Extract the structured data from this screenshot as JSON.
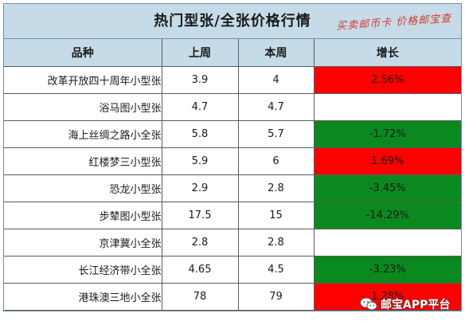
{
  "title": "热门型张/全张价格行情",
  "stamp": "买卖邮币卡 价格邮宝查",
  "headers": [
    "品种",
    "上周",
    "本周",
    "增长"
  ],
  "rows": [
    {
      "name": "改革开放四十周年小型张",
      "last_week": "3.9",
      "this_week": "4",
      "change": "2.56%",
      "trend": "up"
    },
    {
      "name": "浴马图小型张",
      "last_week": "4.7",
      "this_week": "4.7",
      "change": "",
      "trend": "flat"
    },
    {
      "name": "海上丝绸之路小全张",
      "last_week": "5.8",
      "this_week": "5.7",
      "change": "-1.72%",
      "trend": "down"
    },
    {
      "name": "红楼梦三小型张",
      "last_week": "5.9",
      "this_week": "6",
      "change": "1.69%",
      "trend": "up"
    },
    {
      "name": "恐龙小型张",
      "last_week": "2.9",
      "this_week": "2.8",
      "change": "-3.45%",
      "trend": "down"
    },
    {
      "name": "步辇图小型张",
      "last_week": "17.5",
      "this_week": "15",
      "change": "-14.29%",
      "trend": "down"
    },
    {
      "name": "京津冀小全张",
      "last_week": "2.8",
      "this_week": "2.8",
      "change": "",
      "trend": "flat"
    },
    {
      "name": "长江经济带小全张",
      "last_week": "4.65",
      "this_week": "4.5",
      "change": "-3.23%",
      "trend": "down"
    },
    {
      "name": "港珠澳三地小全张",
      "last_week": "78",
      "this_week": "79",
      "change": "1.28%",
      "trend": "up"
    }
  ],
  "watermark": "邮宝APP平台",
  "colors": {
    "header_bg": "#c5dbe8",
    "up": "#ff0000",
    "down": "#0a8a1e",
    "stamp": "#d33a2a"
  },
  "watermark_icon": "chat-bubbles-icon"
}
